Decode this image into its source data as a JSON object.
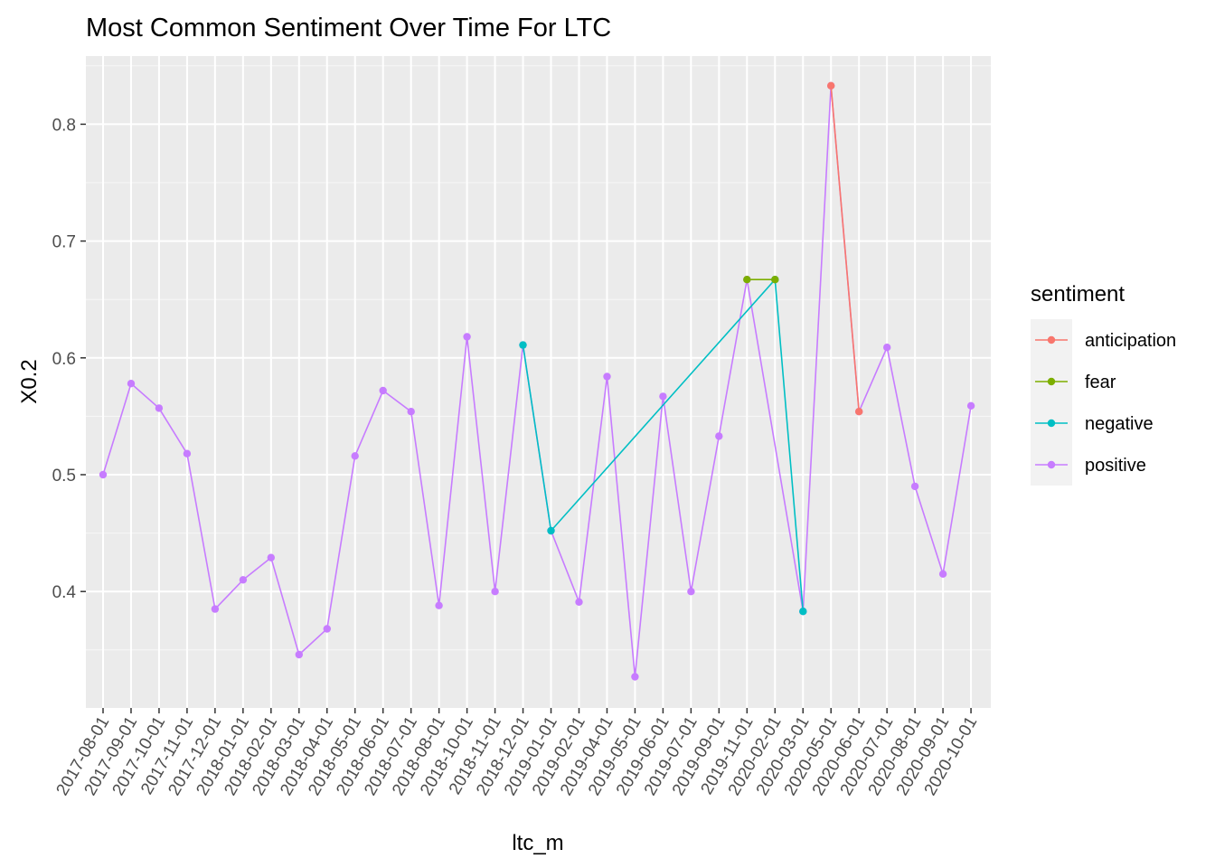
{
  "chart_data": {
    "type": "line",
    "title": "Most Common Sentiment Over Time For LTC",
    "xlabel": "ltc_m",
    "ylabel": "X0.2",
    "ylim": [
      0.3,
      0.85
    ],
    "yticks": [
      "0.4",
      "0.5",
      "0.6",
      "0.7",
      "0.8"
    ],
    "grid": true,
    "legend": {
      "title": "sentiment",
      "position": "right"
    },
    "categories": [
      "2017-08-01",
      "2017-09-01",
      "2017-10-01",
      "2017-11-01",
      "2017-12-01",
      "2018-01-01",
      "2018-02-01",
      "2018-03-01",
      "2018-04-01",
      "2018-05-01",
      "2018-06-01",
      "2018-07-01",
      "2018-08-01",
      "2018-10-01",
      "2018-11-01",
      "2018-12-01",
      "2019-01-01",
      "2019-02-01",
      "2019-04-01",
      "2019-05-01",
      "2019-06-01",
      "2019-07-01",
      "2019-09-01",
      "2019-11-01",
      "2020-02-01",
      "2020-03-01",
      "2020-05-01",
      "2020-06-01",
      "2020-07-01",
      "2020-08-01",
      "2020-09-01",
      "2020-10-01"
    ],
    "series": [
      {
        "name": "anticipation",
        "color": "#F8766D",
        "points": [
          [
            "2020-05-01",
            0.833
          ],
          [
            "2020-06-01",
            0.554
          ]
        ]
      },
      {
        "name": "fear",
        "color": "#7CAE00",
        "points": [
          [
            "2019-11-01",
            0.667
          ],
          [
            "2020-02-01",
            0.667
          ]
        ]
      },
      {
        "name": "negative",
        "color": "#00BFC4",
        "points": [
          [
            "2018-12-01",
            0.611
          ],
          [
            "2019-01-01",
            0.452
          ],
          [
            "2020-02-01",
            0.667
          ],
          [
            "2020-03-01",
            0.383
          ]
        ]
      },
      {
        "name": "positive",
        "color": "#C77CFF",
        "points": [
          [
            "2017-08-01",
            0.5
          ],
          [
            "2017-09-01",
            0.578
          ],
          [
            "2017-10-01",
            0.557
          ],
          [
            "2017-11-01",
            0.518
          ],
          [
            "2017-12-01",
            0.385
          ],
          [
            "2018-01-01",
            0.41
          ],
          [
            "2018-02-01",
            0.429
          ],
          [
            "2018-03-01",
            0.346
          ],
          [
            "2018-04-01",
            0.368
          ],
          [
            "2018-05-01",
            0.516
          ],
          [
            "2018-06-01",
            0.572
          ],
          [
            "2018-07-01",
            0.554
          ],
          [
            "2018-08-01",
            0.388
          ],
          [
            "2018-10-01",
            0.618
          ],
          [
            "2018-11-01",
            0.4
          ],
          [
            "2018-12-01",
            0.611
          ],
          [
            "2019-01-01",
            0.452
          ],
          [
            "2019-02-01",
            0.391
          ],
          [
            "2019-04-01",
            0.584
          ],
          [
            "2019-05-01",
            0.327
          ],
          [
            "2019-06-01",
            0.567
          ],
          [
            "2019-07-01",
            0.4
          ],
          [
            "2019-09-01",
            0.533
          ],
          [
            "2019-11-01",
            0.667
          ],
          [
            "2020-03-01",
            0.383
          ],
          [
            "2020-05-01",
            0.833
          ],
          [
            "2020-06-01",
            0.554
          ],
          [
            "2020-07-01",
            0.609
          ],
          [
            "2020-08-01",
            0.49
          ],
          [
            "2020-09-01",
            0.415
          ],
          [
            "2020-10-01",
            0.559
          ]
        ]
      }
    ]
  }
}
